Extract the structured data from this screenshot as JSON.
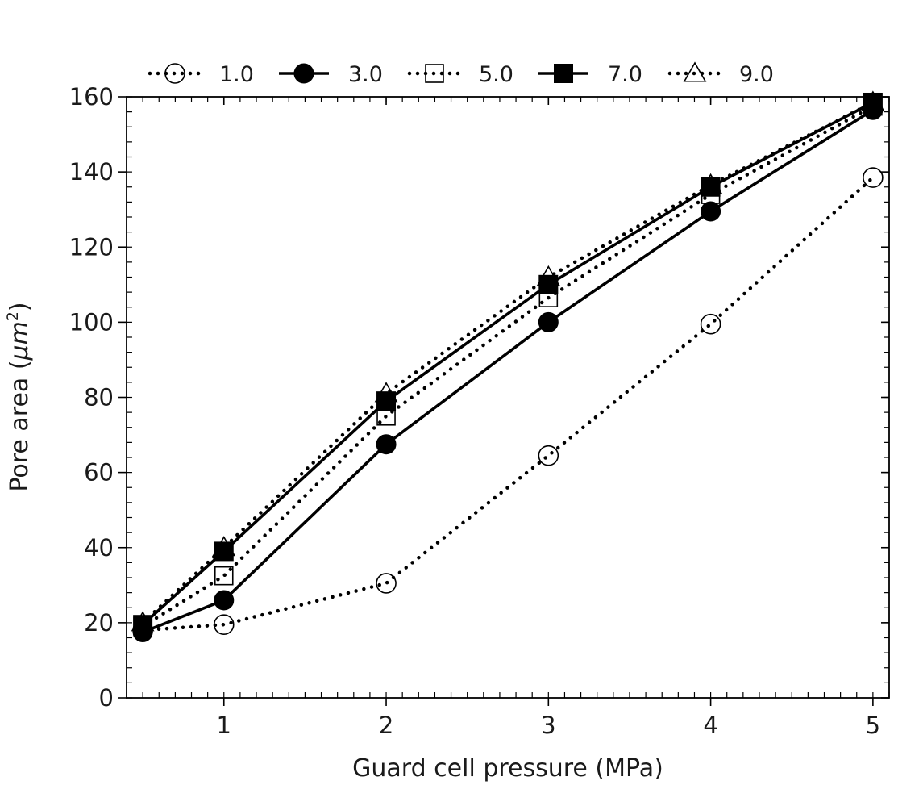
{
  "chart_data": {
    "type": "line",
    "xlabel": "Guard cell pressure (MPa)",
    "ylabel_text": "Pore area (",
    "ylabel_unit": "μm",
    "ylabel_exp": "2",
    "ylabel_close": ")",
    "xlim": [
      0.4,
      5.1
    ],
    "ylim": [
      0,
      160
    ],
    "x_ticks": [
      1,
      2,
      3,
      4,
      5
    ],
    "x_tick_labels": [
      "1",
      "2",
      "3",
      "4",
      "5"
    ],
    "y_ticks": [
      0,
      20,
      40,
      60,
      80,
      100,
      120,
      140,
      160
    ],
    "y_tick_labels": [
      "0",
      "20",
      "40",
      "60",
      "80",
      "100",
      "120",
      "140",
      "160"
    ],
    "x_minor_step": 0.1,
    "y_minor_step": 4,
    "grid": false,
    "legend_position": "top, above plot, single row",
    "x": [
      0.5,
      1,
      2,
      3,
      4,
      5
    ],
    "series": [
      {
        "name": "1.0",
        "line": "dotted",
        "marker": "circle",
        "filled": false,
        "values": [
          18,
          19.5,
          30.5,
          64.5,
          99.5,
          138.5
        ]
      },
      {
        "name": "3.0",
        "line": "solid",
        "marker": "circle",
        "filled": true,
        "values": [
          17.5,
          26,
          67.5,
          100,
          129.5,
          156.5
        ]
      },
      {
        "name": "5.0",
        "line": "dotted",
        "marker": "square",
        "filled": false,
        "values": [
          19,
          32.5,
          75,
          106.5,
          134,
          157.5
        ]
      },
      {
        "name": "7.0",
        "line": "solid",
        "marker": "square",
        "filled": true,
        "values": [
          19.5,
          39,
          79,
          110,
          136,
          158.5
        ]
      },
      {
        "name": "9.0",
        "line": "dotted",
        "marker": "triangle",
        "filled": false,
        "values": [
          20,
          40,
          81,
          112,
          136.5,
          158.5
        ]
      }
    ]
  },
  "colors": {
    "ink": "#000000",
    "text": "#1a1a1a",
    "background": "#ffffff"
  }
}
